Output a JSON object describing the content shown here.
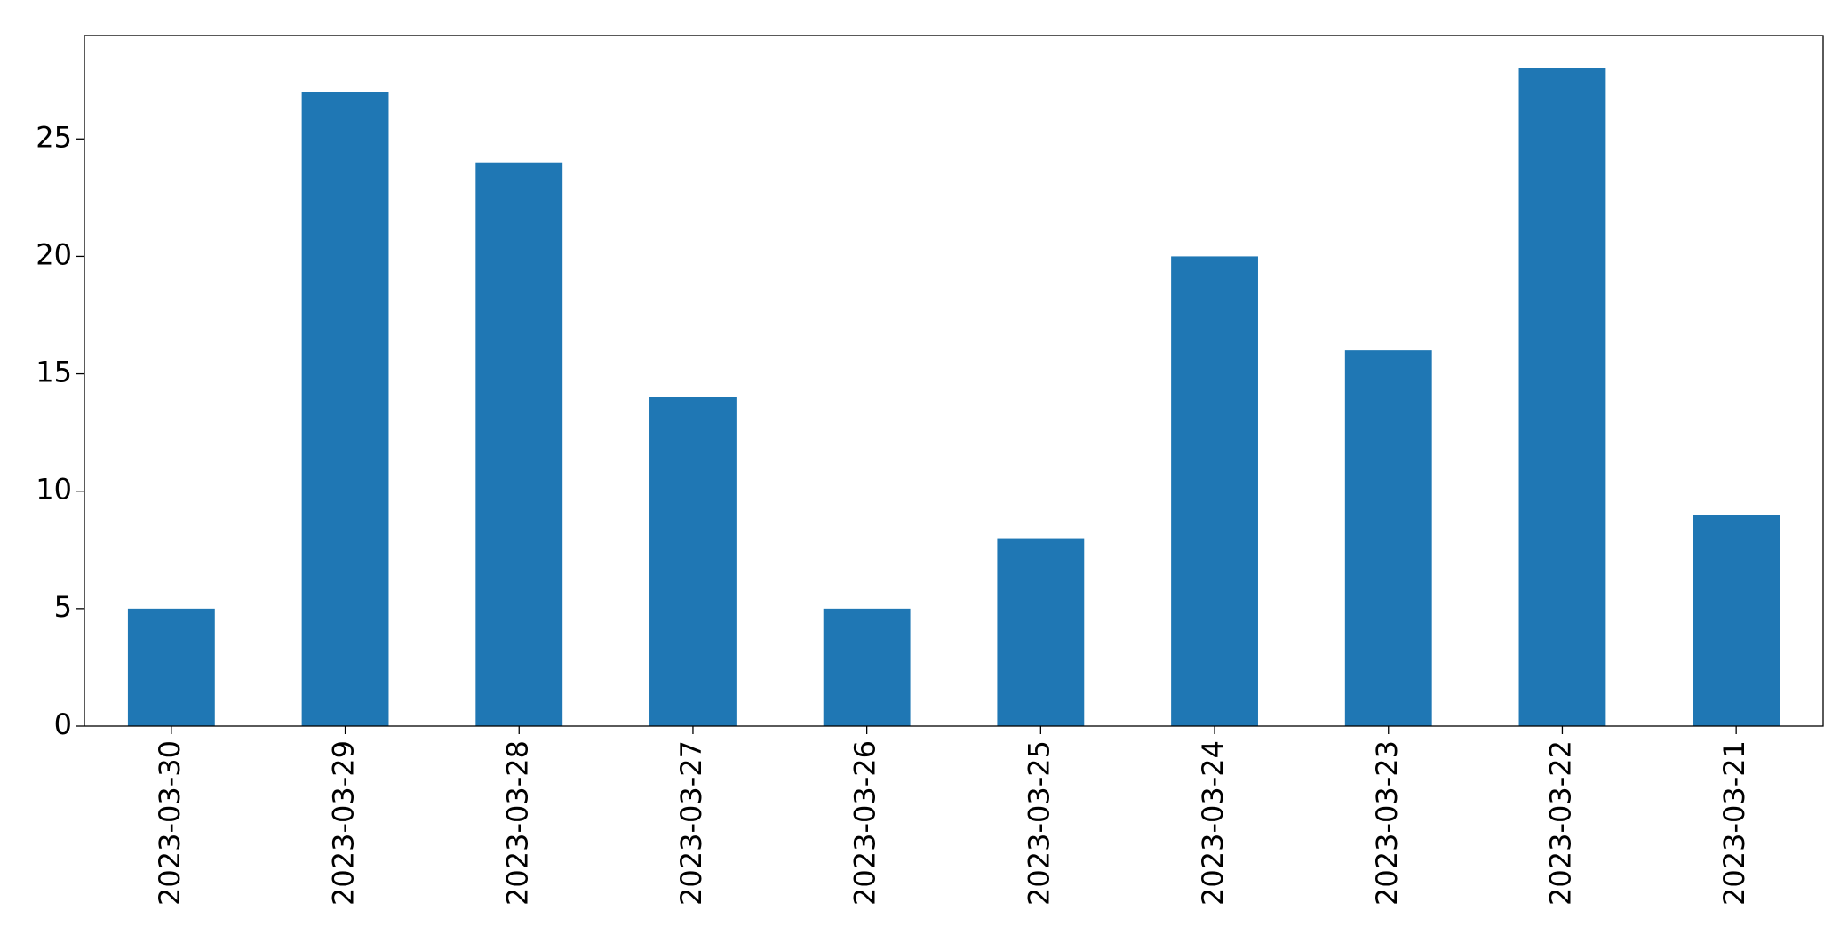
{
  "chart_data": {
    "type": "bar",
    "categories": [
      "2023-03-30",
      "2023-03-29",
      "2023-03-28",
      "2023-03-27",
      "2023-03-26",
      "2023-03-25",
      "2023-03-24",
      "2023-03-23",
      "2023-03-22",
      "2023-03-21"
    ],
    "values": [
      5,
      27,
      24,
      14,
      5,
      8,
      20,
      16,
      28,
      9
    ],
    "color": "#1f77b4",
    "ylim": [
      0,
      29.4
    ],
    "yticks": [
      0,
      5,
      10,
      15,
      20,
      25
    ],
    "grid": false
  }
}
